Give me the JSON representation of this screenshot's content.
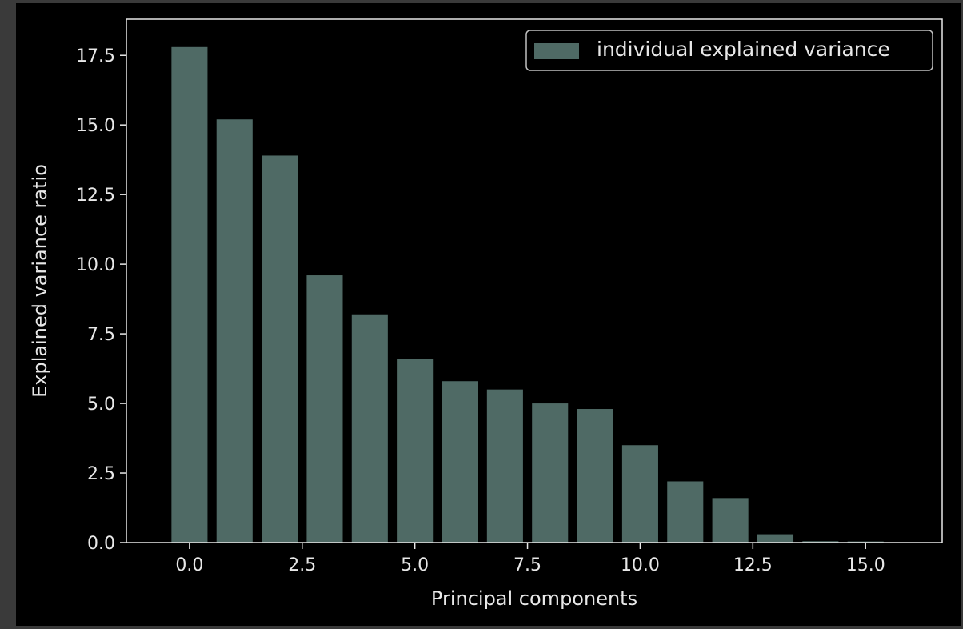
{
  "chart_data": {
    "type": "bar",
    "title": "",
    "xlabel": "Principal components",
    "ylabel": "Explained variance ratio",
    "x": [
      0,
      1,
      2,
      3,
      4,
      5,
      6,
      7,
      8,
      9,
      10,
      11,
      12,
      13,
      14,
      15
    ],
    "series": [
      {
        "name": "individual explained variance",
        "values": [
          17.8,
          15.2,
          13.9,
          9.6,
          8.2,
          6.6,
          5.8,
          5.5,
          5.0,
          4.8,
          3.5,
          2.2,
          1.6,
          0.3,
          0.05,
          0.04
        ]
      }
    ],
    "xlim": [
      -1.4,
      16.7
    ],
    "ylim": [
      0,
      18.8
    ],
    "xticks": [
      0.0,
      2.5,
      5.0,
      7.5,
      10.0,
      12.5,
      15.0
    ],
    "xtick_labels": [
      "0.0",
      "2.5",
      "5.0",
      "7.5",
      "10.0",
      "12.5",
      "15.0"
    ],
    "yticks": [
      0.0,
      2.5,
      5.0,
      7.5,
      10.0,
      12.5,
      15.0,
      17.5
    ],
    "ytick_labels": [
      "0.0",
      "2.5",
      "5.0",
      "7.5",
      "10.0",
      "12.5",
      "15.0",
      "17.5"
    ],
    "grid": false,
    "legend_position": "top-right",
    "colors": {
      "background": "#000000",
      "bar": "#4f6a65",
      "axes": "#e8e8e8",
      "text": "#e8e8e8"
    }
  }
}
